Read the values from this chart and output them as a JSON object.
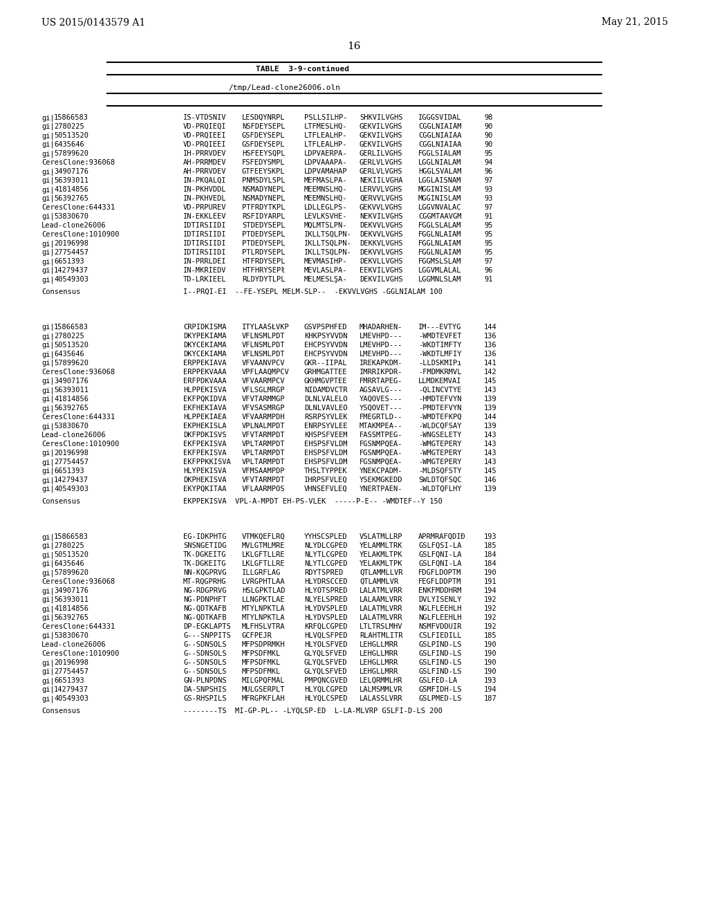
{
  "header_left": "US 2015/0143579 A1",
  "header_right": "May 21, 2015",
  "page_number": "16",
  "table_title": "TABLE  3-9-continued",
  "file_path": "/tmp/Lead-clone26006.oln",
  "background_color": "#ffffff",
  "text_color": "#000000",
  "block1": {
    "rows": [
      {
        "id": "gi|15866583",
        "seq1": "IS-VTDSNIV",
        "seq2": "LESDQYNRPL",
        "seq3": "PSLLSILHP-",
        "seq4": "SHKVILVGHS",
        "seq5": "IGGGSVIDAL",
        "num": "98"
      },
      {
        "id": "gi|2780225",
        "seq1": "VD-PRQIEQI",
        "seq2": "NSFDEYSEPL",
        "seq3": "LTFMESLHQ-",
        "seq4": "GEKVILVGHS",
        "seq5": "CGGLNIAIAM",
        "num": "90"
      },
      {
        "id": "gi|50513520",
        "seq1": "VD-PRQIEEI",
        "seq2": "GSFDEYSEPL",
        "seq3": "LTFLEALHP-",
        "seq4": "GEKVILVGHS",
        "seq5": "CGGLNIAIAA",
        "num": "90"
      },
      {
        "id": "gi|6435646",
        "seq1": "VD-PRQIEEI",
        "seq2": "GSFDEYSEPL",
        "seq3": "LTFLEALHP-",
        "seq4": "GEKVILVGHS",
        "seq5": "CGGLNIAIAA",
        "num": "90"
      },
      {
        "id": "gi|57899620",
        "seq1": "IH-PRRVDEV",
        "seq2": "HSFEEYSQPL",
        "seq3": "LDPVAERPA-",
        "seq4": "GERLILVGHS",
        "seq5": "FGGLSIALAM",
        "num": "95"
      },
      {
        "id": "CeresClone:936068",
        "seq1": "AH-PRRMDEV",
        "seq2": "FSFEDYSMPL",
        "seq3": "LDPVAAAPA-",
        "seq4": "GERLVLVGHS",
        "seq5": "LGGLNIALAM",
        "num": "94"
      },
      {
        "id": "gi|34907176",
        "seq1": "AH-PRRVDEV",
        "seq2": "GTFEEYSKPL",
        "seq3": "LDPVAMAHAP",
        "seq4": "GERLVLVGHS",
        "seq5": "HGGLSVALAM",
        "num": "96"
      },
      {
        "id": "gi|56393011",
        "seq1": "IN-PKQALQI",
        "seq2": "PNMSDYLSPL",
        "seq3": "MEFMASLPA-",
        "seq4": "NEKIILVGHA",
        "seq5": "LGGLAISNAM",
        "num": "97"
      },
      {
        "id": "gi|41814856",
        "seq1": "IN-PKHVDDL",
        "seq2": "NSMADYNEPL",
        "seq3": "MEEMNSLHQ-",
        "seq4": "LERVVLVGHS",
        "seq5": "MGGINISLAM",
        "num": "93"
      },
      {
        "id": "gi|56392765",
        "seq1": "IN-PKHVEDL",
        "seq2": "NSMADYNEPL",
        "seq3": "MEEMNSLHQ-",
        "seq4": "QERVVLVGHS",
        "seq5": "MGGINISLAM",
        "num": "93"
      },
      {
        "id": "CeresClone:644331",
        "seq1": "VD-PRPUREV",
        "seq2": "PTFRDYTKPL",
        "seq3": "LDLLEGLPS-",
        "seq4": "GEKVVLVGHS",
        "seq5": "LGGVNVALAC",
        "num": "97"
      },
      {
        "id": "gi|53830670",
        "seq1": "IN-EKKLEEV",
        "seq2": "RSFIDYARPL",
        "seq3": "LEVLKSVHE-",
        "seq4": "NEKVILVGHS",
        "seq5": "CGGMTAAVGM",
        "num": "91"
      },
      {
        "id": "Lead-clone26006",
        "seq1": "IDTIRSIIDI",
        "seq2": "STDEDYSEPL",
        "seq3": "MQLMTSLPN-",
        "seq4": "DEKVVLVGHS",
        "seq5": "FGGLSLALAM",
        "num": "95"
      },
      {
        "id": "CeresClone:1010900",
        "seq1": "IDTIRSIIDI",
        "seq2": "PTDEDYSEPL",
        "seq3": "IKLLTSQLPN-",
        "seq4": "DEKVVLVGHS",
        "seq5": "FGGLNLAIAM",
        "num": "95"
      },
      {
        "id": "gi|20196998",
        "seq1": "IDTIRSIIDI",
        "seq2": "PTDEDYSEPL",
        "seq3": "IKLLTSQLPN-",
        "seq4": "DEKKVLVGHS",
        "seq5": "FGGLNLAIAM",
        "num": "95"
      },
      {
        "id": "gi|27754457",
        "seq1": "IDTIRSIIDI",
        "seq2": "PTLRDYSEPL",
        "seq3": "IKLLTSQLPN-",
        "seq4": "DEKVVLVGHS",
        "seq5": "FGGLNLAIAM",
        "num": "95"
      },
      {
        "id": "gi|6651393",
        "seq1": "IN-PRRLDEI",
        "seq2": "HTFRDYSEPL",
        "seq3": "MEVMASIHP-",
        "seq4": "DEKVLLVGHS",
        "seq5": "FGGMSLSLAM",
        "num": "97"
      },
      {
        "id": "gi|14279437",
        "seq1": "IN-MKRIEDV",
        "seq2": "HTFHRYSEPł",
        "seq3": "MEVLASLPA-",
        "seq4": "EEKVILVGHS",
        "seq5": "LGGVMLALAL",
        "num": "96"
      },
      {
        "id": "gi|40549303",
        "seq1": "TD-LRKIEEL",
        "seq2": "RLDYDYTLPL",
        "seq3": "MELMESLŞA-",
        "seq4": "DEKVILVGHS",
        "seq5": "LGGMNLSLAM",
        "num": "91"
      }
    ],
    "consensus": "I--PRQI-EI  --FE-YSEPL MELM-SLP--  -EKVVLVGHS -GGLNIALAM 100"
  },
  "block2": {
    "rows": [
      {
        "id": "gi|15866583",
        "seq1": "CRPIDKISMA",
        "seq2": "ITYLAASŁVKP",
        "seq3": "GSVPSPHFED",
        "seq4": "MHADARHEN-",
        "seq5": "IM---EVTYG",
        "num": "144"
      },
      {
        "id": "gi|2780225",
        "seq1": "DKYPEKIAMA",
        "seq2": "VFLNSMLPDT",
        "seq3": "KHKPSYVVDN",
        "seq4": "LMEVHPD---",
        "seq5": "-WMDTEVFET",
        "num": "136"
      },
      {
        "id": "gi|50513520",
        "seq1": "DKYCEKIAMA",
        "seq2": "VFLNSMLPDT",
        "seq3": "EHCPSYVVDN",
        "seq4": "LMEVHPD---",
        "seq5": "-WKDTIMFTY",
        "num": "136"
      },
      {
        "id": "gi|6435646",
        "seq1": "DKYCEKIAMA",
        "seq2": "VFLNSMLPDT",
        "seq3": "EHCPSYVVDN",
        "seq4": "LMEVHPD---",
        "seq5": "-WKDTLMFIY",
        "num": "136"
      },
      {
        "id": "gi|57899620",
        "seq1": "ERPPEKIAVA",
        "seq2": "VFVAANVPCV",
        "seq3": "GKR--IIPAL",
        "seq4": "IREKAPKDM-",
        "seq5": "-LLDSKMIPı",
        "num": "141"
      },
      {
        "id": "CeresClone:936068",
        "seq1": "ERPPEKVAAA",
        "seq2": "VPFLAAQMPCV",
        "seq3": "GRHMGATTEE",
        "seq4": "IMRRIKPDR-",
        "seq5": "-FMDMKRMVL",
        "num": "142"
      },
      {
        "id": "gi|34907176",
        "seq1": "ERFPDKVAAA",
        "seq2": "VFVAARMPCV",
        "seq3": "GKHMGVPTEE",
        "seq4": "FMRRTAPEG-",
        "seq5": "LLMDKEMVAI",
        "num": "145"
      },
      {
        "id": "gi|56393011",
        "seq1": "HLPPEKISVA",
        "seq2": "VFLSGLMRGP",
        "seq3": "NIDAMDVCTR",
        "seq4": "AGSAVLG---",
        "seq5": "-QLINCVTYE",
        "num": "143"
      },
      {
        "id": "gi|41814856",
        "seq1": "EKFPQKIDVA",
        "seq2": "VFVTARMMGP",
        "seq3": "DLNLVALELO",
        "seq4": "YAQOVES---",
        "seq5": "-HMDTEFVYN",
        "num": "139"
      },
      {
        "id": "gi|56392765",
        "seq1": "EKFHEKIAVA",
        "seq2": "VFVSASMRGP",
        "seq3": "DLNLVAVLEO",
        "seq4": "YSQOVET---",
        "seq5": "-PMDTEFVYN",
        "num": "139"
      },
      {
        "id": "CeresClone:644331",
        "seq1": "HLPPEKIAEA",
        "seq2": "VFVAARMPDH",
        "seq3": "RSRPSYVLEK",
        "seq4": "FMEGRTLD--",
        "seq5": "-WMDTEFKPQ",
        "num": "144"
      },
      {
        "id": "gi|53830670",
        "seq1": "EKPHEKISLA",
        "seq2": "VPLNALMPDT",
        "seq3": "ENRPSYVLEE",
        "seq4": "MTAKMPEA--",
        "seq5": "-WLDCQFSAY",
        "num": "139"
      },
      {
        "id": "Lead-clone26006",
        "seq1": "DKFPDKISVS",
        "seq2": "VFVTARMPDT",
        "seq3": "KHSPSFVEEM",
        "seq4": "FASSMTPEG-",
        "seq5": "-WNGSELETY",
        "num": "143"
      },
      {
        "id": "CeresClone:1010900",
        "seq1": "EKFPEKISVA",
        "seq2": "VPLTARMPDT",
        "seq3": "EHSPSFVLDM",
        "seq4": "FGSNMPQEA-",
        "seq5": "-WMGTEPERY",
        "num": "143"
      },
      {
        "id": "gi|20196998",
        "seq1": "EKFPEKISVA",
        "seq2": "VPLTARMPDT",
        "seq3": "EHSPSFVLDM",
        "seq4": "FGSNMPQEA-",
        "seq5": "-WMGTEPERY",
        "num": "143"
      },
      {
        "id": "gi|27754457",
        "seq1": "EKFPPKKISVA",
        "seq2": "VPLTARMPDT",
        "seq3": "EHSPSFVLDM",
        "seq4": "FGSNMPQEA-",
        "seq5": "-WMGTEPERY",
        "num": "143"
      },
      {
        "id": "gi|6651393",
        "seq1": "HLYPEKISVA",
        "seq2": "VFMSAAMPDP",
        "seq3": "THSLTYPPEК",
        "seq4": "YNEKCPADM-",
        "seq5": "-MLDSQFSTY",
        "num": "145"
      },
      {
        "id": "gi|14279437",
        "seq1": "DKPHEKISVA",
        "seq2": "VFVTARMPDT",
        "seq3": "IHRPSFVLEQ",
        "seq4": "YSEKMGKEDD",
        "seq5": "SWLDTQFSQC",
        "num": "146"
      },
      {
        "id": "gi|40549303",
        "seq1": "EKYPQKITAA",
        "seq2": "VFLAARMPOS",
        "seq3": "VHNSEFVLEQ",
        "seq4": "YNERTPAEN-",
        "seq5": "-WLDTQFLHY",
        "num": "139"
      }
    ],
    "consensus": "EKPPEKISVA  VPL-A-MPDT EH-PS-VLEK  -----P-E-- -WMDTEF--Y 150"
  },
  "block3": {
    "rows": [
      {
        "id": "gi|15866583",
        "seq1": "EG-IDKPHTG",
        "seq2": "VTMKQEFLRQ",
        "seq3": "YYHSCSPLED",
        "seq4": "VSLATMLLRP",
        "seq5": "APRMRAFQDIĐ",
        "num": "193"
      },
      {
        "id": "gi|2780225",
        "seq1": "SNSNGETIDG",
        "seq2": "MVLGTMLMRE",
        "seq3": "NLYDLCGPED",
        "seq4": "YELAMMLTRK",
        "seq5": "GSLFQSI-LA",
        "num": "185"
      },
      {
        "id": "gi|50513520",
        "seq1": "TK-DGKEITG",
        "seq2": "LKLGFTLLRE",
        "seq3": "NLYTLCGPED",
        "seq4": "YELAKMLTРК",
        "seq5": "GSLFQNI-LA",
        "num": "184"
      },
      {
        "id": "gi|6435646",
        "seq1": "TK-DGKEITG",
        "seq2": "LKLGFTLLRE",
        "seq3": "NLYTLCGPED",
        "seq4": "YELAKMLTРК",
        "seq5": "GSLFQNI-LA",
        "num": "184"
      },
      {
        "id": "gi|57899620",
        "seq1": "NN-KQGPRVG",
        "seq2": "ILLGRFLAG",
        "seq3": "RDYTSPRED",
        "seq4": "QTLAMMLLVR",
        "seq5": "FDGFLDOPTM",
        "num": "190"
      },
      {
        "id": "CeresClone:936068",
        "seq1": "MT-RQGPRHG",
        "seq2": "LVRGPHTLAA",
        "seq3": "HLYDRSCCED",
        "seq4": "QTLAMMLVR",
        "seq5": "FEGFLDDPTM",
        "num": "191"
      },
      {
        "id": "gi|34907176",
        "seq1": "NG-RDGPRVG",
        "seq2": "HSLGPKTLAD",
        "seq3": "HLYOTSPRED",
        "seq4": "LALATMLVRR",
        "seq5": "ENKFMDDHRM",
        "num": "194"
      },
      {
        "id": "gi|56393011",
        "seq1": "NG-PDNPHFT",
        "seq2": "LLNGPKTLAE",
        "seq3": "NLYELSPRED",
        "seq4": "LALAAMLVRR",
        "seq5": "DVLYISENLY",
        "num": "192"
      },
      {
        "id": "gi|41814856",
        "seq1": "NG-QDTKAFB",
        "seq2": "MTYLNPKTLA",
        "seq3": "HLYDVSPLED",
        "seq4": "LALATMLVRR",
        "seq5": "NGLFLEEHLH",
        "num": "192"
      },
      {
        "id": "gi|56392765",
        "seq1": "NG-QDTKAFB",
        "seq2": "MTYLNPKTLA",
        "seq3": "HLYDVSPLED",
        "seq4": "LALATMLVRR",
        "seq5": "NGLFLEEHLH",
        "num": "192"
      },
      {
        "id": "CeresClone:644331",
        "seq1": "DP-EGKLAPTS",
        "seq2": "MLFHSLVTRA",
        "seq3": "KRFQLCGPED",
        "seq4": "LTLTRSLMHV",
        "seq5": "NSMFVDDUIR",
        "num": "192"
      },
      {
        "id": "gi|53830670",
        "seq1": "G---SNPPITS",
        "seq2": "GCFPEJR",
        "seq3": "HLVQLSFPED",
        "seq4": "RLAHTMLITR",
        "seq5": "CSLFIEDILL",
        "num": "185"
      },
      {
        "id": "Lead-clone26006",
        "seq1": "G--SDNSOLS",
        "seq2": "MFPSDPRMKH",
        "seq3": "HLYOLSFVED",
        "seq4": "LEHGLLMRR",
        "seq5": "GSLPIND-LS",
        "num": "190"
      },
      {
        "id": "CeresClone:1010900",
        "seq1": "G--SDNSOLS",
        "seq2": "MFPSDFMKL",
        "seq3": "GLYQLSFVED",
        "seq4": "LEHGLLMRR",
        "seq5": "GSLFIND-LS",
        "num": "190"
      },
      {
        "id": "gi|20196998",
        "seq1": "G--SDNSOLS",
        "seq2": "MFPSDFMKL",
        "seq3": "GLYQLSFVED",
        "seq4": "LEHGLLMRR",
        "seq5": "GSLFIND-LS",
        "num": "190"
      },
      {
        "id": "gi|27754457",
        "seq1": "G--SDNSOLS",
        "seq2": "MFPSDFMKL",
        "seq3": "GLYQLSFVED",
        "seq4": "LEHGLLMRR",
        "seq5": "GSLFIND-LS",
        "num": "190"
      },
      {
        "id": "gi|6651393",
        "seq1": "GN-PLNPDNS",
        "seq2": "MILGPQFMAL",
        "seq3": "PMPQNCGVED",
        "seq4": "LELQRMMLHR",
        "seq5": "GSLFED-LA",
        "num": "193"
      },
      {
        "id": "gi|14279437",
        "seq1": "DA-SNPSHIS",
        "seq2": "MULGSERPLT",
        "seq3": "HLYQLCGPED",
        "seq4": "LALMSMMLVR",
        "seq5": "GSMFIDH-LS",
        "num": "194"
      },
      {
        "id": "gi|40549303",
        "seq1": "GS-RHSPILS",
        "seq2": "MFRGPKFLAH",
        "seq3": "HLYQLCSPED",
        "seq4": "LALASSLVRR",
        "seq5": "GSLPMED-LS",
        "num": "187"
      }
    ],
    "consensus": "--------TS  MI-GP-PL-- -LYQLSP-ED  L-LA-MLVRP GSLFI-D-LS 200"
  }
}
